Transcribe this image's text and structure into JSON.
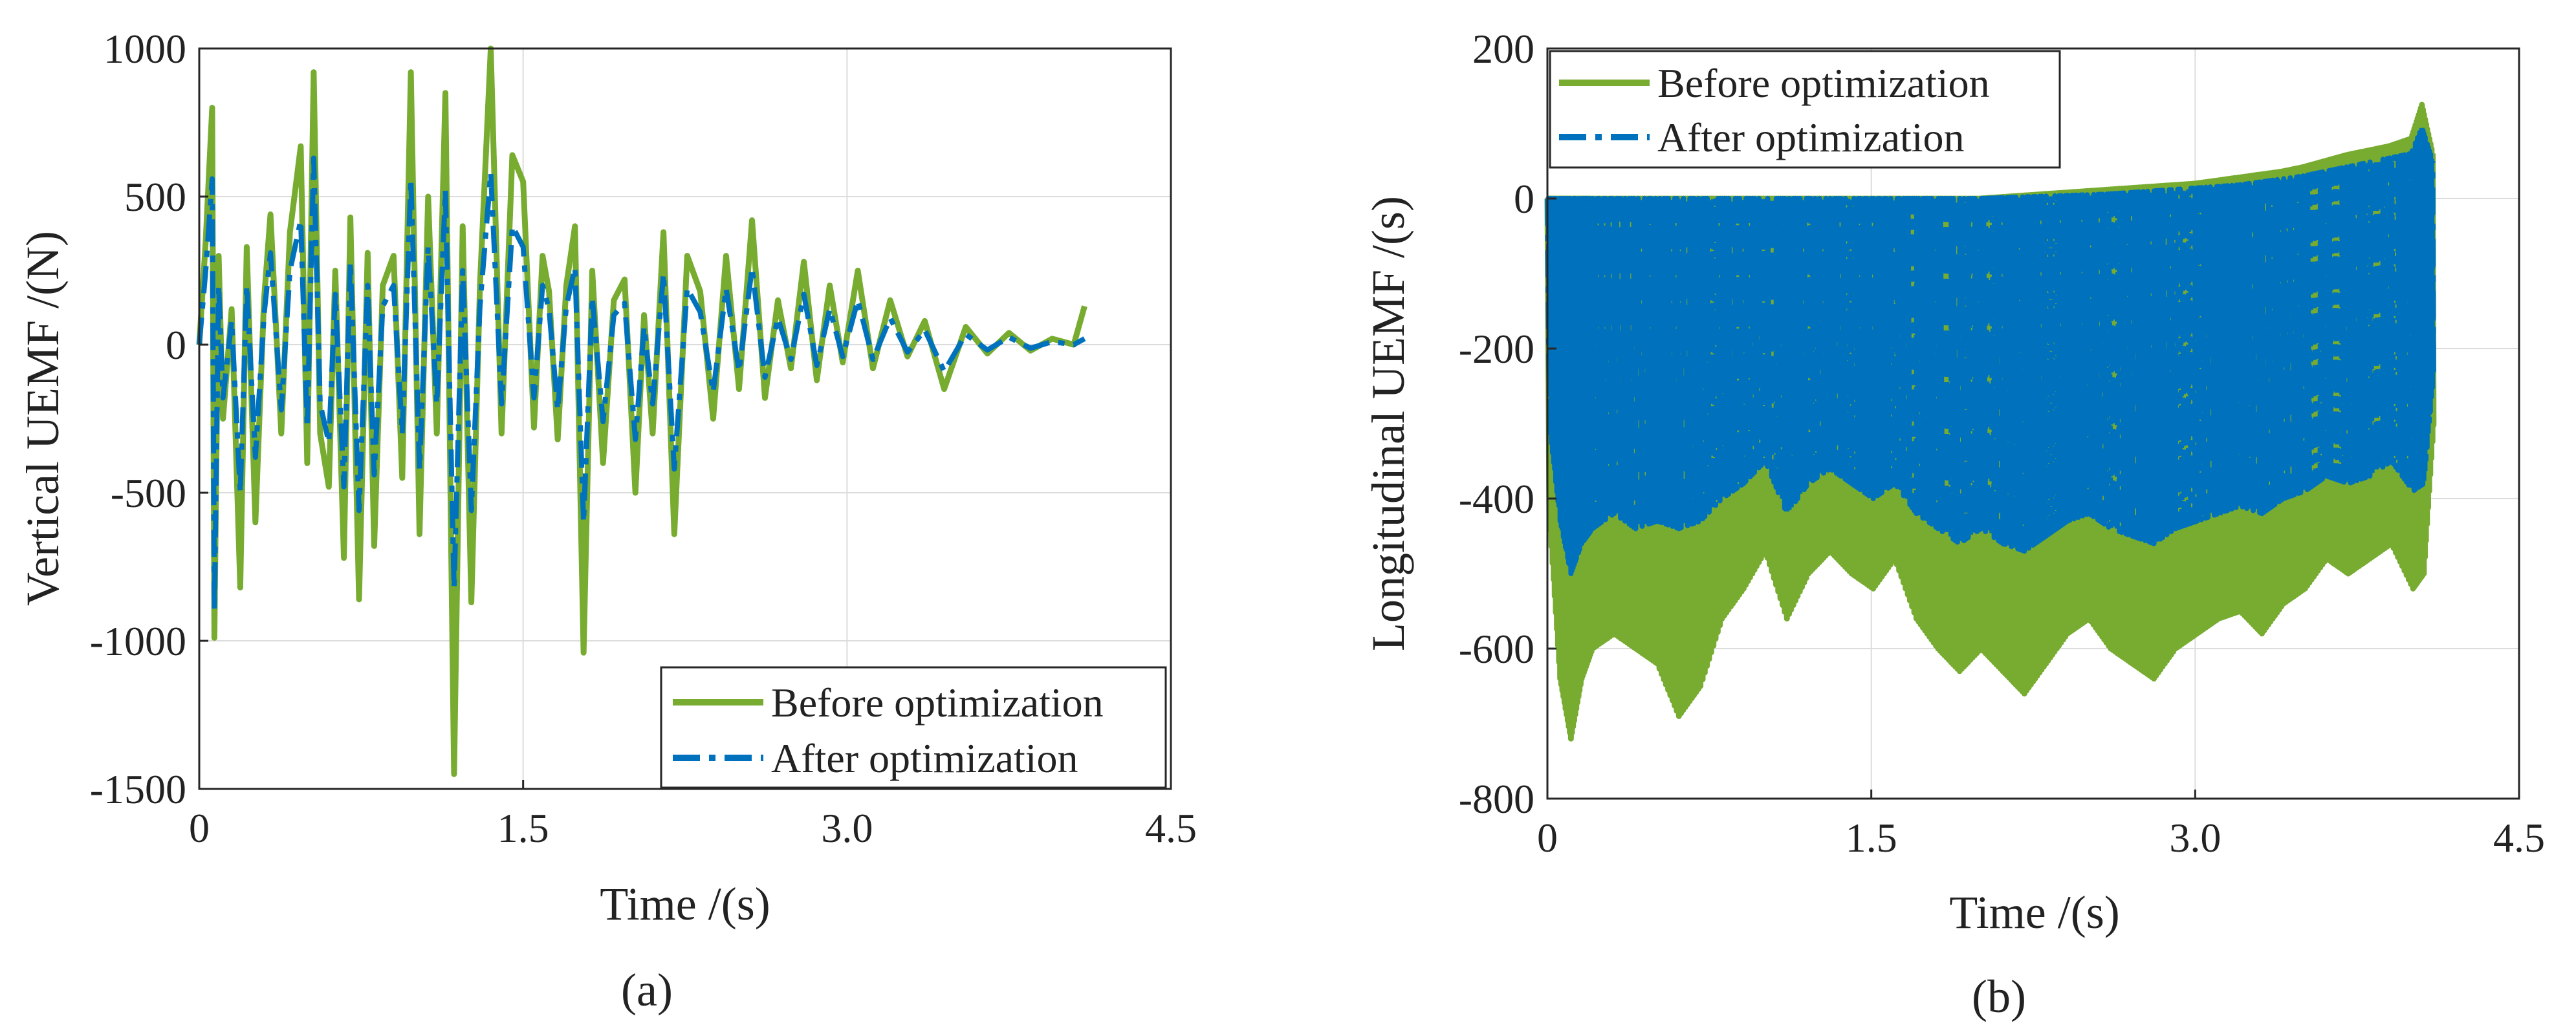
{
  "chart_data": [
    {
      "id": "a",
      "type": "line",
      "panel_label": "(a)",
      "title": "",
      "xlabel": "Time /(s)",
      "ylabel": "Vertical UEMF /(N)",
      "xlim": [
        0,
        4.5
      ],
      "ylim": [
        -1500,
        1000
      ],
      "xticks": [
        0,
        1.5,
        3.0,
        4.5
      ],
      "xtick_labels": [
        "0",
        "1.5",
        "3.0",
        "4.5"
      ],
      "yticks": [
        1000,
        500,
        0,
        -500,
        -1000,
        -1500
      ],
      "ytick_labels": [
        "1000",
        "500",
        "0",
        "-500",
        "-1000",
        "-1500"
      ],
      "grid": true,
      "legend_position": "bottom-right",
      "series": [
        {
          "name": "Before optimization",
          "color": "#77ac30",
          "style": "solid",
          "x": [
            0,
            0.03,
            0.06,
            0.07,
            0.09,
            0.11,
            0.15,
            0.19,
            0.22,
            0.26,
            0.3,
            0.33,
            0.38,
            0.42,
            0.47,
            0.5,
            0.53,
            0.56,
            0.6,
            0.63,
            0.67,
            0.7,
            0.74,
            0.78,
            0.81,
            0.85,
            0.9,
            0.94,
            0.98,
            1.02,
            1.06,
            1.1,
            1.14,
            1.18,
            1.22,
            1.26,
            1.3,
            1.35,
            1.4,
            1.45,
            1.5,
            1.55,
            1.59,
            1.62,
            1.66,
            1.7,
            1.74,
            1.78,
            1.82,
            1.87,
            1.92,
            1.97,
            2.02,
            2.06,
            2.1,
            2.15,
            2.2,
            2.26,
            2.32,
            2.38,
            2.44,
            2.5,
            2.56,
            2.62,
            2.68,
            2.74,
            2.8,
            2.86,
            2.92,
            2.98,
            3.05,
            3.12,
            3.2,
            3.28,
            3.36,
            3.45,
            3.55,
            3.65,
            3.75,
            3.85,
            3.95,
            4.05,
            4.1
          ],
          "values": [
            0,
            350,
            800,
            -990,
            300,
            -250,
            120,
            -820,
            330,
            -600,
            150,
            440,
            -300,
            380,
            670,
            -400,
            920,
            -300,
            -480,
            250,
            -720,
            430,
            -860,
            310,
            -680,
            200,
            300,
            -450,
            920,
            -640,
            500,
            -300,
            850,
            -1450,
            400,
            -870,
            200,
            1000,
            -300,
            640,
            550,
            -280,
            300,
            180,
            -320,
            200,
            400,
            -1040,
            250,
            -400,
            150,
            220,
            -500,
            100,
            -300,
            380,
            -640,
            300,
            180,
            -250,
            300,
            -150,
            420,
            -180,
            150,
            -80,
            280,
            -120,
            200,
            -60,
            250,
            -80,
            150,
            -40,
            80,
            -150,
            60,
            -30,
            40,
            -20,
            20,
            0,
            130
          ]
        },
        {
          "name": "After optimization",
          "color": "#0072bd",
          "style": "dashdot",
          "x": [
            0,
            0.03,
            0.06,
            0.07,
            0.09,
            0.11,
            0.15,
            0.19,
            0.22,
            0.26,
            0.3,
            0.33,
            0.38,
            0.42,
            0.47,
            0.5,
            0.53,
            0.56,
            0.6,
            0.63,
            0.67,
            0.7,
            0.74,
            0.78,
            0.81,
            0.85,
            0.9,
            0.94,
            0.98,
            1.02,
            1.06,
            1.1,
            1.14,
            1.18,
            1.22,
            1.26,
            1.3,
            1.35,
            1.4,
            1.45,
            1.5,
            1.55,
            1.59,
            1.62,
            1.66,
            1.7,
            1.74,
            1.78,
            1.82,
            1.87,
            1.92,
            1.97,
            2.02,
            2.06,
            2.1,
            2.15,
            2.2,
            2.26,
            2.32,
            2.38,
            2.44,
            2.5,
            2.56,
            2.62,
            2.68,
            2.74,
            2.8,
            2.86,
            2.92,
            2.98,
            3.05,
            3.12,
            3.2,
            3.28,
            3.36,
            3.45,
            3.55,
            3.65,
            3.75,
            3.85,
            3.95,
            4.05,
            4.1
          ],
          "values": [
            0,
            250,
            560,
            -900,
            200,
            -180,
            80,
            -500,
            200,
            -380,
            100,
            310,
            -220,
            250,
            420,
            -280,
            630,
            -200,
            -330,
            170,
            -480,
            280,
            -560,
            200,
            -440,
            130,
            200,
            -300,
            560,
            -420,
            330,
            -200,
            520,
            -820,
            250,
            -560,
            130,
            580,
            -200,
            400,
            330,
            -180,
            200,
            120,
            -220,
            130,
            260,
            -600,
            160,
            -260,
            100,
            140,
            -320,
            60,
            -200,
            240,
            -420,
            190,
            110,
            -160,
            190,
            -90,
            260,
            -110,
            90,
            -50,
            170,
            -70,
            120,
            -40,
            150,
            -50,
            90,
            -25,
            50,
            -90,
            35,
            -18,
            25,
            -12,
            10,
            0,
            20
          ]
        }
      ]
    },
    {
      "id": "b",
      "type": "line",
      "panel_label": "(b)",
      "title": "",
      "xlabel": "Time /(s)",
      "ylabel": "Longitudinal UEMF /(s)",
      "xlim": [
        0,
        4.5
      ],
      "ylim": [
        -800,
        200
      ],
      "xticks": [
        0,
        1.5,
        3.0,
        4.5
      ],
      "xtick_labels": [
        "0",
        "1.5",
        "3.0",
        "4.5"
      ],
      "yticks": [
        200,
        0,
        -200,
        -400,
        -600,
        -800
      ],
      "ytick_labels": [
        "200",
        "0",
        "-200",
        "-400",
        "-600",
        "-800"
      ],
      "grid": true,
      "legend_position": "top-left",
      "series": [
        {
          "name": "Before optimization",
          "color": "#77ac30",
          "style": "solid",
          "x": [
            0,
            0.05,
            0.1,
            0.15,
            0.2,
            0.3,
            0.4,
            0.5,
            0.6,
            0.7,
            0.8,
            0.9,
            1.0,
            1.1,
            1.2,
            1.3,
            1.4,
            1.5,
            1.6,
            1.7,
            1.8,
            1.9,
            2.0,
            2.1,
            2.2,
            2.3,
            2.4,
            2.5,
            2.6,
            2.7,
            2.8,
            2.9,
            3.0,
            3.1,
            3.2,
            3.3,
            3.4,
            3.5,
            3.6,
            3.7,
            3.8,
            3.9,
            4.0,
            4.05,
            4.1
          ],
          "min_values": [
            -420,
            -640,
            -720,
            -640,
            -600,
            -580,
            -600,
            -620,
            -690,
            -650,
            -560,
            -520,
            -470,
            -560,
            -500,
            -470,
            -500,
            -520,
            -480,
            -560,
            -600,
            -630,
            -600,
            -630,
            -660,
            -620,
            -580,
            -560,
            -600,
            -620,
            -640,
            -600,
            -580,
            -560,
            -550,
            -580,
            -540,
            -520,
            -480,
            -500,
            -480,
            -460,
            -520,
            -500,
            -280
          ],
          "max_values": [
            0,
            0,
            0,
            0,
            0,
            0,
            0,
            0,
            0,
            0,
            0,
            0,
            0,
            0,
            0,
            0,
            0,
            0,
            0,
            0,
            0,
            0,
            0,
            2,
            4,
            6,
            8,
            10,
            12,
            14,
            16,
            18,
            20,
            24,
            28,
            32,
            36,
            42,
            50,
            58,
            64,
            70,
            80,
            125,
            60
          ]
        },
        {
          "name": "After optimization",
          "color": "#0072bd",
          "style": "dashdot",
          "x": [
            0,
            0.05,
            0.1,
            0.15,
            0.2,
            0.3,
            0.4,
            0.5,
            0.6,
            0.7,
            0.8,
            0.9,
            1.0,
            1.1,
            1.2,
            1.3,
            1.4,
            1.5,
            1.6,
            1.7,
            1.8,
            1.9,
            2.0,
            2.1,
            2.2,
            2.3,
            2.4,
            2.5,
            2.6,
            2.7,
            2.8,
            2.9,
            3.0,
            3.1,
            3.2,
            3.3,
            3.4,
            3.5,
            3.6,
            3.7,
            3.8,
            3.9,
            4.0,
            4.05,
            4.1
          ],
          "min_values": [
            -300,
            -430,
            -500,
            -460,
            -440,
            -420,
            -440,
            -430,
            -440,
            -430,
            -400,
            -380,
            -350,
            -420,
            -380,
            -360,
            -380,
            -400,
            -380,
            -420,
            -440,
            -460,
            -440,
            -460,
            -470,
            -450,
            -430,
            -420,
            -440,
            -450,
            -460,
            -440,
            -430,
            -420,
            -410,
            -420,
            -400,
            -390,
            -370,
            -380,
            -370,
            -350,
            -390,
            -380,
            -220
          ],
          "max_values": [
            0,
            0,
            0,
            0,
            0,
            0,
            0,
            0,
            0,
            0,
            0,
            0,
            0,
            0,
            0,
            0,
            0,
            0,
            0,
            0,
            0,
            0,
            0,
            1,
            2,
            3,
            4,
            5,
            6,
            8,
            10,
            12,
            14,
            16,
            18,
            22,
            26,
            30,
            36,
            42,
            48,
            54,
            60,
            95,
            50
          ]
        }
      ]
    }
  ]
}
